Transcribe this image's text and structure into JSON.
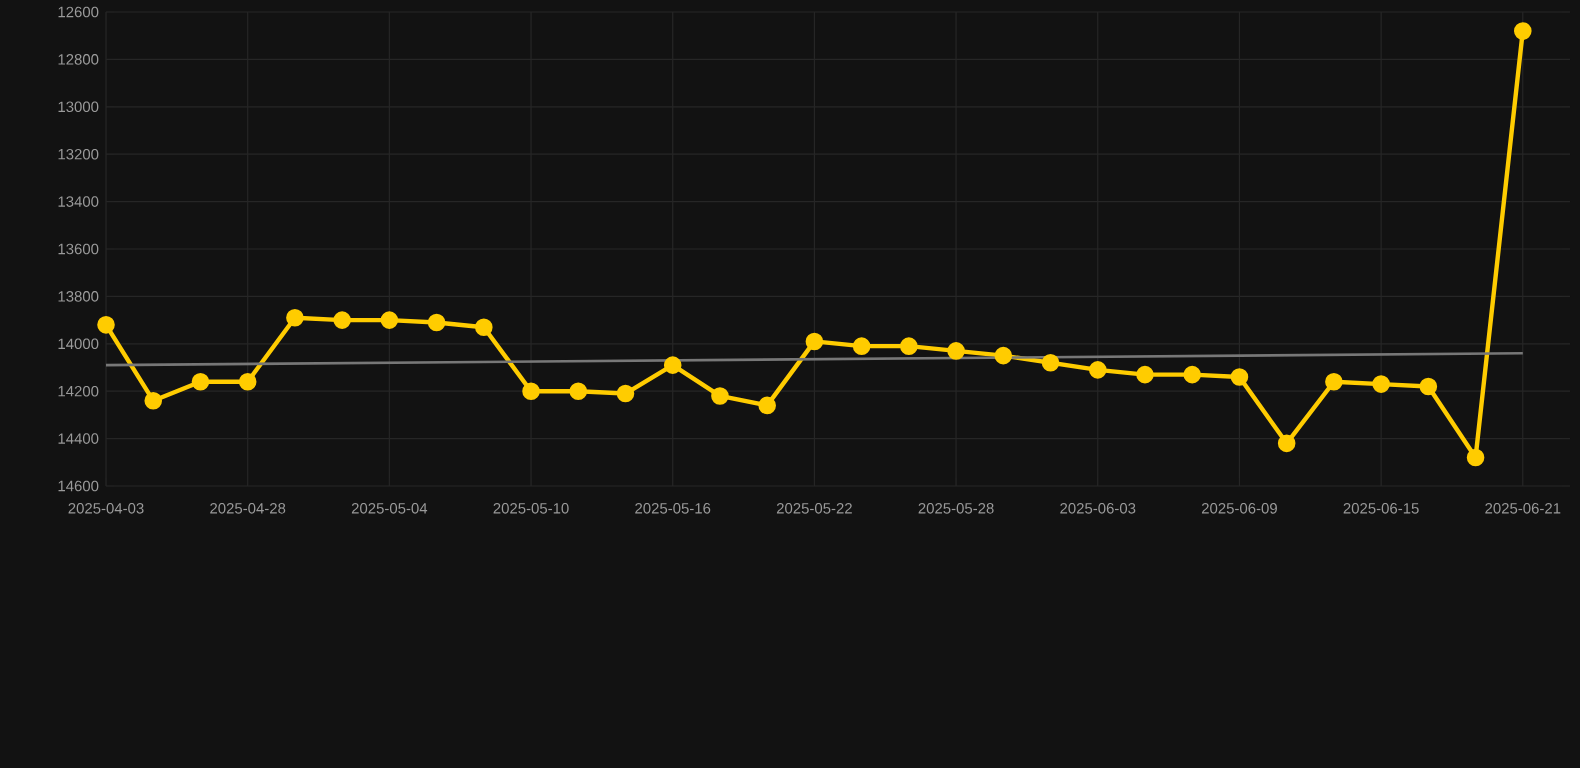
{
  "chart_data": {
    "type": "line",
    "categories": [
      "2025-04-03",
      null,
      null,
      "2025-04-28",
      null,
      null,
      "2025-05-04",
      null,
      null,
      "2025-05-10",
      null,
      null,
      "2025-05-16",
      null,
      null,
      "2025-05-22",
      null,
      null,
      "2025-05-28",
      null,
      null,
      "2025-06-03",
      null,
      null,
      "2025-06-09",
      null,
      null,
      "2025-06-15",
      null,
      null,
      "2025-06-21"
    ],
    "series": [
      {
        "color": "#ffcc00",
        "values": [
          13920,
          14240,
          14160,
          14160,
          13890,
          13900,
          13900,
          13910,
          13930,
          14200,
          14200,
          14210,
          14090,
          14220,
          14260,
          13990,
          14010,
          14010,
          14030,
          14050,
          14080,
          14110,
          14130,
          14130,
          14140,
          14420,
          14160,
          14170,
          14180,
          14480,
          12680
        ]
      },
      {
        "type": "line",
        "color": "#777777",
        "marker": "none",
        "values": [
          14090,
          null,
          null,
          null,
          null,
          null,
          null,
          null,
          null,
          null,
          null,
          null,
          null,
          null,
          null,
          null,
          null,
          null,
          null,
          null,
          null,
          null,
          null,
          null,
          null,
          null,
          null,
          null,
          null,
          null,
          14040
        ]
      }
    ],
    "ylim": [
      14600,
      12600
    ],
    "yticks": [
      12600,
      12800,
      13000,
      13200,
      13400,
      13600,
      13800,
      14000,
      14200,
      14400,
      14600
    ],
    "grid": true,
    "marker": "circle",
    "line_style": "solid",
    "legend": false
  }
}
